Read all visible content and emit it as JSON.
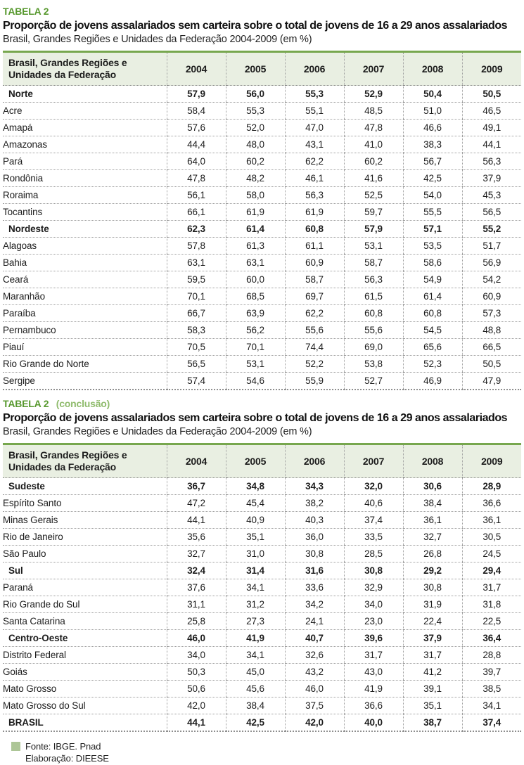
{
  "tables": [
    {
      "tag": "TABELA 2",
      "tag_suffix": "",
      "title": "Proporção de jovens assalariados sem carteira sobre o total de jovens de 16 a 29 anos assalariados",
      "subtitle": "Brasil, Grandes Regiões e Unidades da Federação 2004-2009 (em %)",
      "header_label": "Brasil, Grandes Regiões e Unidades da Federação",
      "years": [
        "2004",
        "2005",
        "2006",
        "2007",
        "2008",
        "2009"
      ],
      "rows": [
        {
          "label": "Norte",
          "bold": true,
          "values": [
            "57,9",
            "56,0",
            "55,3",
            "52,9",
            "50,4",
            "50,5"
          ]
        },
        {
          "label": "Acre",
          "bold": false,
          "values": [
            "58,4",
            "55,3",
            "55,1",
            "48,5",
            "51,0",
            "46,5"
          ]
        },
        {
          "label": "Amapá",
          "bold": false,
          "values": [
            "57,6",
            "52,0",
            "47,0",
            "47,8",
            "46,6",
            "49,1"
          ]
        },
        {
          "label": "Amazonas",
          "bold": false,
          "values": [
            "44,4",
            "48,0",
            "43,1",
            "41,0",
            "38,3",
            "44,1"
          ]
        },
        {
          "label": "Pará",
          "bold": false,
          "values": [
            "64,0",
            "60,2",
            "62,2",
            "60,2",
            "56,7",
            "56,3"
          ]
        },
        {
          "label": "Rondônia",
          "bold": false,
          "values": [
            "47,8",
            "48,2",
            "46,1",
            "41,6",
            "42,5",
            "37,9"
          ]
        },
        {
          "label": "Roraima",
          "bold": false,
          "values": [
            "56,1",
            "58,0",
            "56,3",
            "52,5",
            "54,0",
            "45,3"
          ]
        },
        {
          "label": "Tocantins",
          "bold": false,
          "values": [
            "66,1",
            "61,9",
            "61,9",
            "59,7",
            "55,5",
            "56,5"
          ]
        },
        {
          "label": "Nordeste",
          "bold": true,
          "values": [
            "62,3",
            "61,4",
            "60,8",
            "57,9",
            "57,1",
            "55,2"
          ]
        },
        {
          "label": "Alagoas",
          "bold": false,
          "values": [
            "57,8",
            "61,3",
            "61,1",
            "53,1",
            "53,5",
            "51,7"
          ]
        },
        {
          "label": "Bahia",
          "bold": false,
          "values": [
            "63,1",
            "63,1",
            "60,9",
            "58,7",
            "58,6",
            "56,9"
          ]
        },
        {
          "label": "Ceará",
          "bold": false,
          "values": [
            "59,5",
            "60,0",
            "58,7",
            "56,3",
            "54,9",
            "54,2"
          ]
        },
        {
          "label": "Maranhão",
          "bold": false,
          "values": [
            "70,1",
            "68,5",
            "69,7",
            "61,5",
            "61,4",
            "60,9"
          ]
        },
        {
          "label": "Paraíba",
          "bold": false,
          "values": [
            "66,7",
            "63,9",
            "62,2",
            "60,8",
            "60,8",
            "57,3"
          ]
        },
        {
          "label": "Pernambuco",
          "bold": false,
          "values": [
            "58,3",
            "56,2",
            "55,6",
            "55,6",
            "54,5",
            "48,8"
          ]
        },
        {
          "label": "Piauí",
          "bold": false,
          "values": [
            "70,5",
            "70,1",
            "74,4",
            "69,0",
            "65,6",
            "66,5"
          ]
        },
        {
          "label": "Rio Grande do Norte",
          "bold": false,
          "values": [
            "56,5",
            "53,1",
            "52,2",
            "53,8",
            "52,3",
            "50,5"
          ]
        },
        {
          "label": "Sergipe",
          "bold": false,
          "values": [
            "57,4",
            "54,6",
            "55,9",
            "52,7",
            "46,9",
            "47,9"
          ]
        }
      ]
    },
    {
      "tag": "TABELA 2",
      "tag_suffix": "(conclusão)",
      "title": "Proporção de jovens assalariados sem carteira sobre o total de jovens de 16 a 29 anos assalariados",
      "subtitle": "Brasil, Grandes Regiões e Unidades da Federação 2004-2009 (em %)",
      "header_label": "Brasil, Grandes Regiões e Unidades da Federação",
      "years": [
        "2004",
        "2005",
        "2006",
        "2007",
        "2008",
        "2009"
      ],
      "rows": [
        {
          "label": "Sudeste",
          "bold": true,
          "values": [
            "36,7",
            "34,8",
            "34,3",
            "32,0",
            "30,6",
            "28,9"
          ]
        },
        {
          "label": "Espírito Santo",
          "bold": false,
          "values": [
            "47,2",
            "45,4",
            "38,2",
            "40,6",
            "38,4",
            "36,6"
          ]
        },
        {
          "label": "Minas Gerais",
          "bold": false,
          "values": [
            "44,1",
            "40,9",
            "40,3",
            "37,4",
            "36,1",
            "36,1"
          ]
        },
        {
          "label": "Rio de Janeiro",
          "bold": false,
          "values": [
            "35,6",
            "35,1",
            "36,0",
            "33,5",
            "32,7",
            "30,5"
          ]
        },
        {
          "label": "São Paulo",
          "bold": false,
          "values": [
            "32,7",
            "31,0",
            "30,8",
            "28,5",
            "26,8",
            "24,5"
          ]
        },
        {
          "label": "Sul",
          "bold": true,
          "values": [
            "32,4",
            "31,4",
            "31,6",
            "30,8",
            "29,2",
            "29,4"
          ]
        },
        {
          "label": "Paraná",
          "bold": false,
          "values": [
            "37,6",
            "34,1",
            "33,6",
            "32,9",
            "30,8",
            "31,7"
          ]
        },
        {
          "label": "Rio Grande do Sul",
          "bold": false,
          "values": [
            "31,1",
            "31,2",
            "34,2",
            "34,0",
            "31,9",
            "31,8"
          ]
        },
        {
          "label": "Santa Catarina",
          "bold": false,
          "values": [
            "25,8",
            "27,3",
            "24,1",
            "23,0",
            "22,4",
            "22,5"
          ]
        },
        {
          "label": "Centro-Oeste",
          "bold": true,
          "values": [
            "46,0",
            "41,9",
            "40,7",
            "39,6",
            "37,9",
            "36,4"
          ]
        },
        {
          "label": "Distrito Federal",
          "bold": false,
          "values": [
            "34,0",
            "34,1",
            "32,6",
            "31,7",
            "31,7",
            "28,8"
          ]
        },
        {
          "label": "Goiás",
          "bold": false,
          "values": [
            "50,3",
            "45,0",
            "43,2",
            "43,0",
            "41,2",
            "39,7"
          ]
        },
        {
          "label": "Mato Grosso",
          "bold": false,
          "values": [
            "50,6",
            "45,6",
            "46,0",
            "41,9",
            "39,1",
            "38,5"
          ]
        },
        {
          "label": "Mato Grosso do Sul",
          "bold": false,
          "values": [
            "42,0",
            "38,4",
            "37,5",
            "36,6",
            "35,1",
            "34,1"
          ]
        },
        {
          "label": "BRASIL",
          "bold": true,
          "values": [
            "44,1",
            "42,5",
            "42,0",
            "40,0",
            "38,7",
            "37,4"
          ]
        }
      ]
    }
  ],
  "footer": {
    "source": "Fonte: IBGE. Pnad",
    "elaboration": "Elaboração: DIEESE"
  },
  "colors": {
    "tag_green": "#58992f",
    "tag_suffix_green": "#8fbb6c",
    "header_bg": "#e9efe2",
    "table_top_rule": "#77a74e",
    "footer_square": "#adc697"
  }
}
